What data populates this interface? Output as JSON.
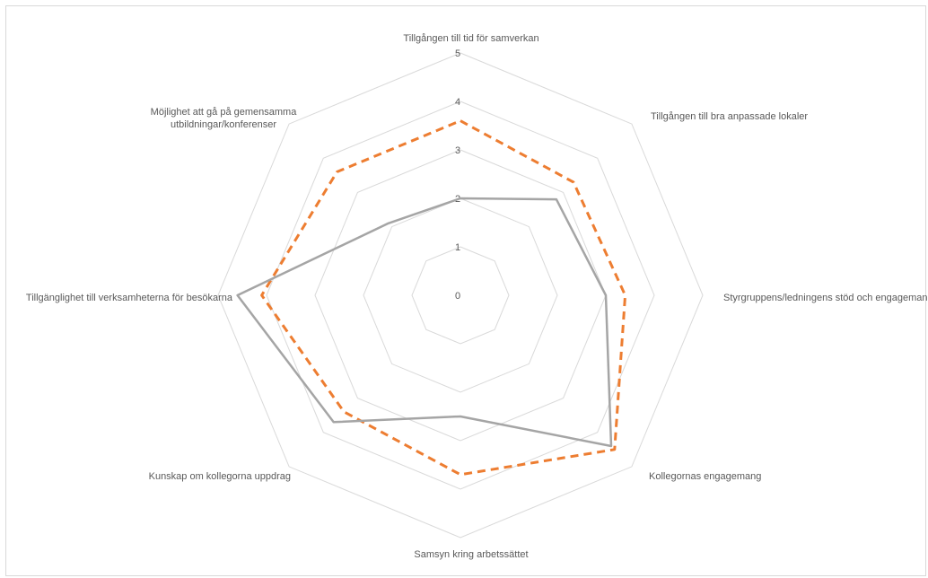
{
  "chart_data": {
    "type": "radar",
    "title": "",
    "categories": [
      "Tillgången till tid för samverkan",
      "Tillgången till bra anpassade lokaler",
      "Styrgruppens/ledningens stöd och engagemang",
      "Kollegornas engagemang",
      "Samsyn kring arbetssättet",
      "Kunskap om kollegorna uppdrag",
      "Tillgänglighet till verksamheterna för besökarna",
      "Möjlighet att gå på gemensamma utbildningar/konferenser"
    ],
    "r_ticks": [
      "0",
      "1",
      "2",
      "3",
      "4",
      "5"
    ],
    "rlim": [
      0,
      5
    ],
    "series": [
      {
        "name": "",
        "color": "#ed7d31",
        "dash": "dashed",
        "values": [
          3.6,
          3.3,
          3.4,
          4.5,
          3.7,
          3.4,
          4.1,
          3.6
        ]
      },
      {
        "name": "",
        "color": "#a5a5a5",
        "dash": "solid",
        "values": [
          2.0,
          2.8,
          3.0,
          4.4,
          2.5,
          3.7,
          4.6,
          2.1
        ]
      }
    ],
    "grid": true,
    "legend": "none"
  }
}
